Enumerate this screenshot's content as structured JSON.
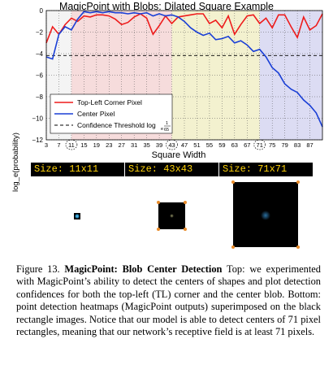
{
  "chart_data": {
    "type": "line",
    "title": "MagicPoint with Blobs: Dilated Square Example",
    "xlabel": "Square Width",
    "ylabel": "log_e(probability)",
    "x_tick_labels": [
      "3",
      "7",
      "11",
      "15",
      "19",
      "23",
      "27",
      "31",
      "35",
      "39",
      "43",
      "47",
      "51",
      "55",
      "59",
      "63",
      "67",
      "71",
      "75",
      "79",
      "83",
      "87"
    ],
    "x_circled_ticks": [
      "11",
      "43",
      "71"
    ],
    "y_tick_labels": [
      "0",
      "−2",
      "−4",
      "−6",
      "−8",
      "−10",
      "−12"
    ],
    "ylim": [
      -12,
      0
    ],
    "x": [
      3,
      5,
      7,
      9,
      11,
      13,
      15,
      17,
      19,
      21,
      23,
      25,
      27,
      29,
      31,
      33,
      35,
      37,
      39,
      41,
      43,
      45,
      47,
      49,
      51,
      53,
      55,
      57,
      59,
      61,
      63,
      65,
      67,
      69,
      71,
      73,
      75,
      77,
      79,
      81,
      83,
      85,
      87,
      89,
      91
    ],
    "series": [
      {
        "name": "Top-Left Corner Pixel",
        "color": "#ee1c1c",
        "values": [
          -3.0,
          -1.5,
          -2.2,
          -1.3,
          -0.7,
          -1.0,
          -0.5,
          -0.6,
          -0.4,
          -0.4,
          -0.5,
          -0.8,
          -1.3,
          -1.1,
          -0.6,
          -0.3,
          -0.7,
          -2.2,
          -1.4,
          -0.5,
          -1.2,
          -0.6,
          -0.5,
          -0.4,
          -0.3,
          -0.3,
          -1.2,
          -0.9,
          -1.6,
          -0.5,
          -2.2,
          -1.3,
          -0.5,
          -0.4,
          -1.2,
          -0.7,
          -1.6,
          -0.4,
          -0.4,
          -1.5,
          -2.5,
          -0.6,
          -1.8,
          -1.4,
          -0.3
        ]
      },
      {
        "name": "Center Pixel",
        "color": "#1a3fd6",
        "values": [
          -4.3,
          -4.5,
          -2.2,
          -1.5,
          -1.8,
          -0.8,
          -0.1,
          -0.2,
          -0.1,
          -0.2,
          -0.1,
          -0.2,
          -0.2,
          -0.3,
          -0.2,
          -0.3,
          -0.2,
          -0.5,
          -0.3,
          -0.5,
          -0.4,
          -0.6,
          -1.0,
          -1.6,
          -2.0,
          -2.3,
          -2.1,
          -2.7,
          -2.6,
          -2.4,
          -3.0,
          -2.8,
          -3.2,
          -3.8,
          -3.6,
          -4.3,
          -5.3,
          -5.8,
          -6.8,
          -7.3,
          -7.6,
          -8.3,
          -8.8,
          -9.5,
          -10.8
        ]
      }
    ],
    "threshold": {
      "name": "Confidence Threshold log_e(1/65)",
      "value": -4.174
    },
    "bands": [
      {
        "from": 3,
        "to": 11,
        "color": "#f4f4f4"
      },
      {
        "from": 11,
        "to": 43,
        "color": "#f6dcdc"
      },
      {
        "from": 43,
        "to": 71,
        "color": "#f3f1cf"
      },
      {
        "from": 71,
        "to": 91,
        "color": "#dcdcf3"
      }
    ],
    "legend": {
      "placement": "lower-left",
      "entries": [
        {
          "label": "Top-Left Corner Pixel",
          "color": "#ee1c1c",
          "style": "solid"
        },
        {
          "label": "Center Pixel",
          "color": "#1a3fd6",
          "style": "solid"
        },
        {
          "label": "Confidence Threshold log",
          "suffix": "e",
          "frac_num": "1",
          "frac_den": "65",
          "color": "#000000",
          "style": "dashed"
        }
      ]
    }
  },
  "panels": [
    {
      "label": "Size: 11x11",
      "square_width": 11
    },
    {
      "label": "Size: 43x43",
      "square_width": 43
    },
    {
      "label": "Size: 71x71",
      "square_width": 71
    }
  ],
  "caption": {
    "prefix": "Figure 13. ",
    "bold": "MagicPoint: Blob Center Detection",
    "text": " Top: we experimented with MagicPoint’s ability to detect the centers of shapes and plot detection confidences for both the top-left (TL) corner and the center blob. Bottom: point detection heatmaps (MagicPoint outputs) superimposed on the black rectangle images. Notice that our model is able to detect centers of 71 pixel rectangles, meaning that our network’s receptive field is at least 71 pixels."
  }
}
